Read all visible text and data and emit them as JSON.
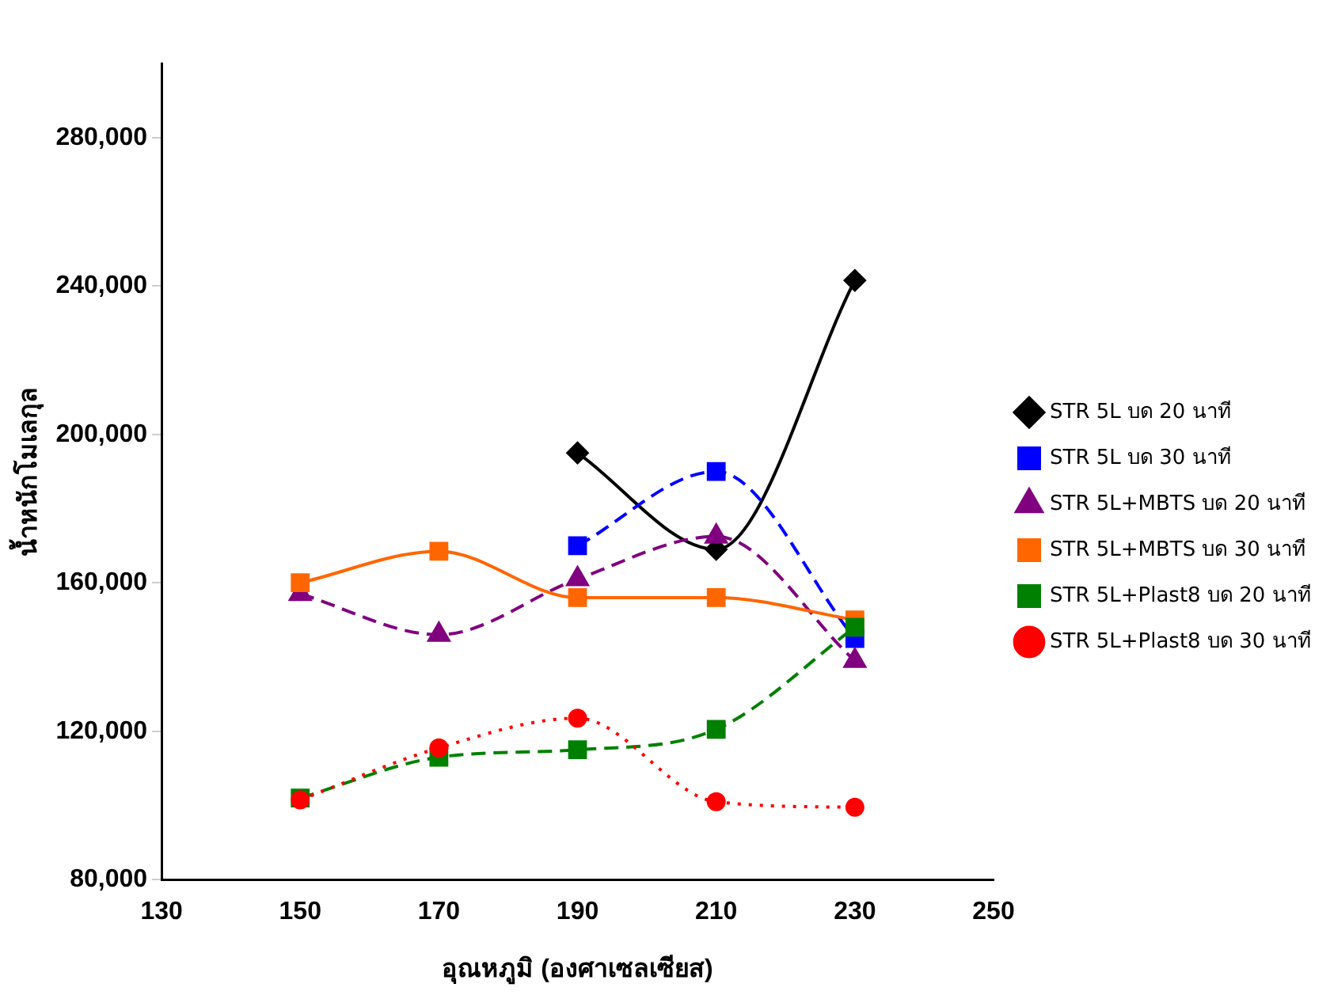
{
  "chart_data": {
    "type": "line",
    "xlabel": "อุณหภูมิ (องศาเซลเซียส)",
    "ylabel": "น้ำหนักโมเลกุล",
    "xlim": [
      130,
      250
    ],
    "xticks": [
      130,
      150,
      170,
      190,
      210,
      230,
      250
    ],
    "ylim": [
      80000,
      300000
    ],
    "yticks": [
      {
        "value": 80000,
        "label": "80,000"
      },
      {
        "value": 120000,
        "label": "120,000"
      },
      {
        "value": 160000,
        "label": "160,000"
      },
      {
        "value": 200000,
        "label": "200,000"
      },
      {
        "value": 240000,
        "label": "240,000"
      },
      {
        "value": 280000,
        "label": "280,000"
      }
    ],
    "grid": false,
    "legend": "right",
    "series": [
      {
        "name": "STR 5L บด 20 นาที",
        "color": "#000000",
        "marker": "diamond",
        "line_style": "solid",
        "x": [
          190,
          210,
          230
        ],
        "values": [
          195000,
          169000,
          241500
        ]
      },
      {
        "name": "STR 5L บด 30 นาที",
        "color": "#0000ff",
        "marker": "square",
        "line_style": "dashed",
        "x": [
          190,
          210,
          230
        ],
        "values": [
          170000,
          190000,
          145000
        ]
      },
      {
        "name": "STR 5L+MBTS บด 20 นาที",
        "color": "#800080",
        "marker": "triangle",
        "line_style": "dashed",
        "x": [
          150,
          170,
          190,
          210,
          230
        ],
        "values": [
          157000,
          146000,
          161000,
          172500,
          139000
        ]
      },
      {
        "name": "STR 5L+MBTS บด 30 นาที",
        "color": "#ff6600",
        "marker": "square",
        "line_style": "solid",
        "x": [
          150,
          170,
          190,
          210,
          230
        ],
        "values": [
          160000,
          168500,
          156000,
          156000,
          150000
        ]
      },
      {
        "name": "STR 5L+Plast8 บด 20 นาที",
        "color": "#008000",
        "marker": "square",
        "line_style": "dashed",
        "x": [
          150,
          170,
          190,
          210,
          230
        ],
        "values": [
          102000,
          113000,
          115000,
          120500,
          148000
        ]
      },
      {
        "name": "STR 5L+Plast8 บด 30 นาที",
        "color": "#ff0000",
        "marker": "circle",
        "line_style": "dotted",
        "x": [
          150,
          170,
          190,
          210,
          230
        ],
        "values": [
          101500,
          115500,
          123500,
          101000,
          99500
        ]
      }
    ]
  }
}
